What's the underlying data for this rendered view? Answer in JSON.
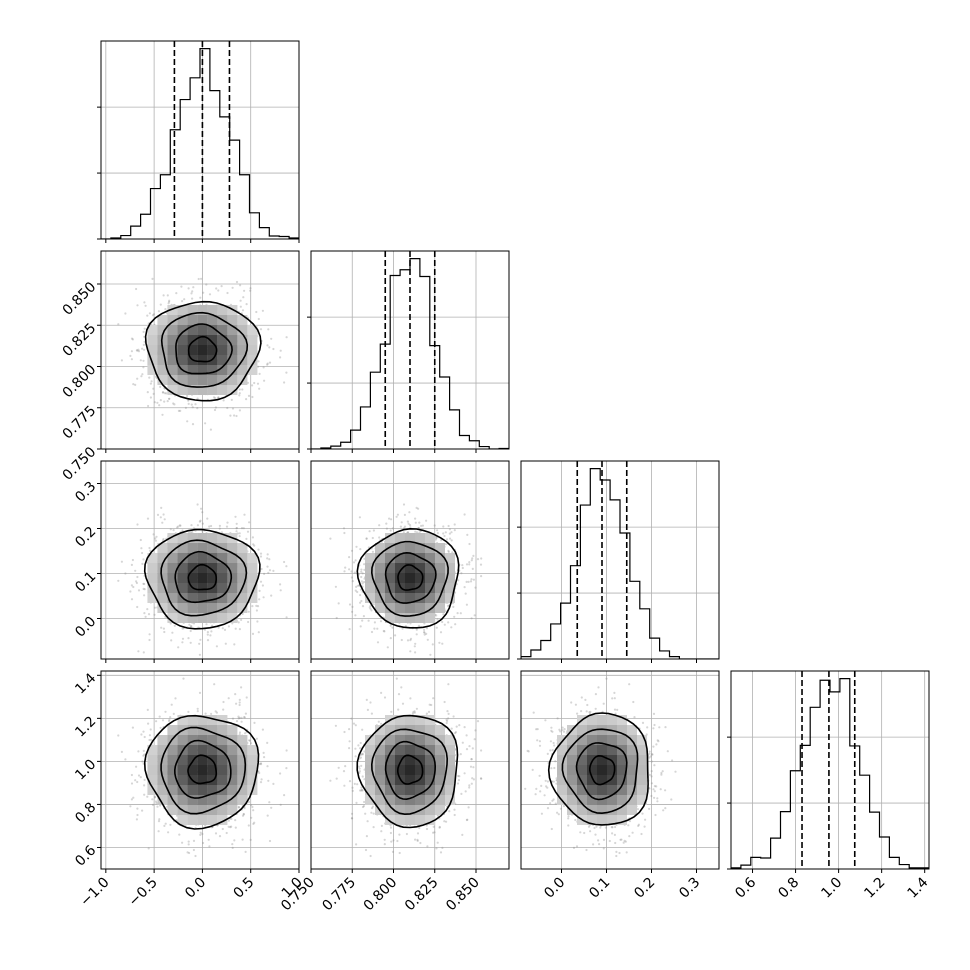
{
  "chart_data": {
    "type": "corner",
    "parameters": [
      {
        "mean": 0.0,
        "std": 0.29,
        "range": [
          -1.05,
          1.0
        ],
        "ticks": [
          -1.0,
          -0.5,
          0.0,
          0.5,
          1.0
        ],
        "tick_labels": [
          "−1.0",
          "−0.5",
          "0.0",
          "0.5",
          "1.0"
        ],
        "quantiles": [
          -0.29,
          0.0,
          0.28
        ]
      },
      {
        "mean": 0.81,
        "std": 0.015,
        "range": [
          0.75,
          0.87
        ],
        "ticks": [
          0.75,
          0.775,
          0.8,
          0.825,
          0.85
        ],
        "tick_labels": [
          "0.750",
          "0.775",
          "0.800",
          "0.825",
          "0.850"
        ],
        "quantiles": [
          0.795,
          0.81,
          0.825
        ]
      },
      {
        "mean": 0.09,
        "std": 0.055,
        "range": [
          -0.09,
          0.35
        ],
        "ticks": [
          0.0,
          0.1,
          0.2,
          0.3
        ],
        "tick_labels": [
          "0.0",
          "0.1",
          "0.2",
          "0.3"
        ],
        "quantiles": [
          0.035,
          0.09,
          0.145
        ]
      },
      {
        "mean": 0.96,
        "std": 0.13,
        "range": [
          0.5,
          1.42
        ],
        "ticks": [
          0.6,
          0.8,
          1.0,
          1.2,
          1.4
        ],
        "tick_labels": [
          "0.6",
          "0.8",
          "1.0",
          "1.2",
          "1.4"
        ],
        "quantiles": [
          0.83,
          0.955,
          1.075
        ]
      }
    ],
    "histogram_bins": 20,
    "contour_levels_sigma": [
      0.5,
      1.0,
      1.5,
      2.0
    ],
    "grid": true,
    "colors": {
      "points": "#8a8a8a",
      "lines": "#000000",
      "grid": "#b0b0b0"
    }
  }
}
